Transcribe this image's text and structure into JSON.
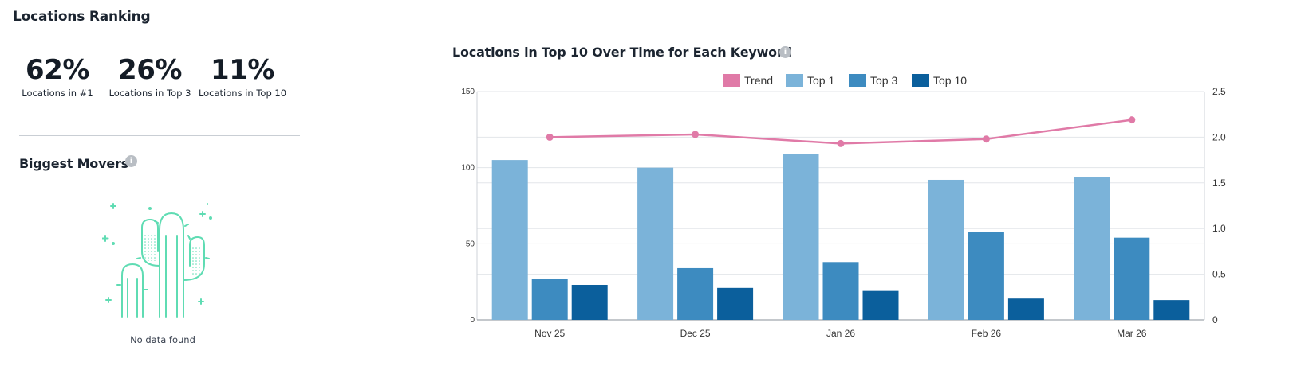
{
  "page": {
    "title": "Locations Ranking"
  },
  "stats": [
    {
      "value": "62%",
      "label": "Locations in #1"
    },
    {
      "value": "26%",
      "label": "Locations in Top 3"
    },
    {
      "value": "11%",
      "label": "Locations in Top 10"
    }
  ],
  "movers": {
    "title": "Biggest Movers",
    "info_icon": "info-icon",
    "empty_illustration": "cactus-illustration",
    "empty_text": "No data found"
  },
  "chart_panel": {
    "title": "Locations in Top 10 Over Time for Each Keyword",
    "info_icon": "info-icon"
  },
  "chart_data": {
    "type": "bar",
    "categories": [
      "Nov 25",
      "Dec 25",
      "Jan 26",
      "Feb 26",
      "Mar 26"
    ],
    "series": [
      {
        "name": "Top 1",
        "type": "bar",
        "axis": "left",
        "color": "#7bb3d9",
        "values": [
          105,
          100,
          109,
          92,
          94
        ]
      },
      {
        "name": "Top 3",
        "type": "bar",
        "axis": "left",
        "color": "#3d8bc0",
        "values": [
          27,
          34,
          38,
          58,
          54
        ]
      },
      {
        "name": "Top 10",
        "type": "bar",
        "axis": "left",
        "color": "#0b5f9c",
        "values": [
          23,
          21,
          19,
          14,
          13
        ]
      },
      {
        "name": "Trend",
        "type": "line",
        "axis": "right",
        "color": "#e07aa7",
        "values": [
          2.0,
          2.03,
          1.93,
          1.98,
          2.19
        ]
      }
    ],
    "legend_order": [
      "Trend",
      "Top 1",
      "Top 3",
      "Top 10"
    ],
    "legend_position": "top-center",
    "y_left": {
      "ticks": [
        "0",
        "50",
        "100",
        "150"
      ],
      "range": [
        0,
        150
      ]
    },
    "y_right": {
      "ticks": [
        "0",
        "0.5",
        "1.0",
        "1.5",
        "2.0",
        "2.5"
      ],
      "range": [
        0,
        2.5
      ]
    },
    "grid": true
  }
}
